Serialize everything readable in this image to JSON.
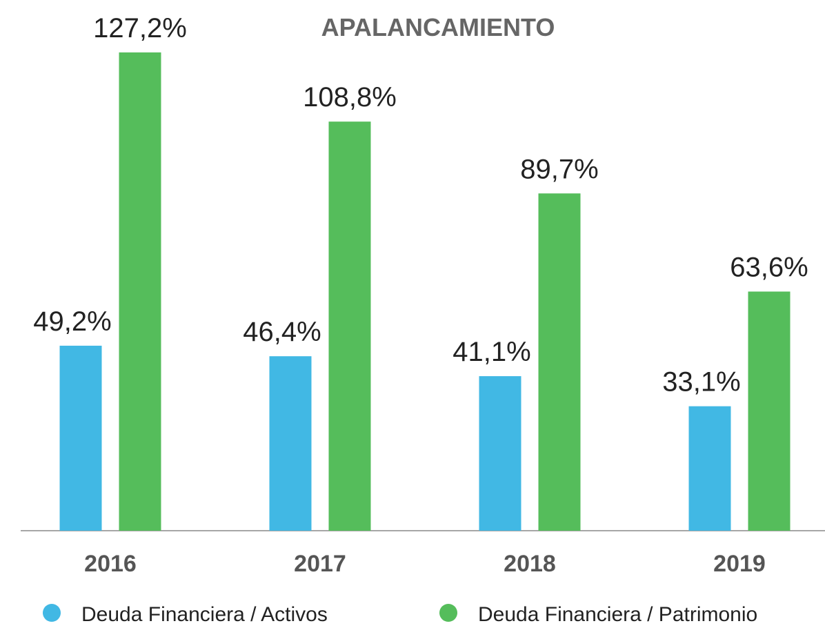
{
  "chart_data": {
    "type": "bar",
    "title": "APALANCAMIENTO",
    "categories": [
      "2016",
      "2017",
      "2018",
      "2019"
    ],
    "series": [
      {
        "name": "Deuda Financiera / Activos",
        "color": "#41b8e4",
        "values": [
          49.2,
          46.4,
          41.1,
          33.1
        ],
        "value_labels": [
          "49,2%",
          "46,4%",
          "41,1%",
          "33,1%"
        ]
      },
      {
        "name": "Deuda Financiera / Patrimonio",
        "color": "#55bd5b",
        "values": [
          127.2,
          108.8,
          89.7,
          63.6
        ],
        "value_labels": [
          "127,2%",
          "108,8%",
          "89,7%",
          "63,6%"
        ]
      }
    ],
    "ylim": [
      0,
      130
    ]
  }
}
